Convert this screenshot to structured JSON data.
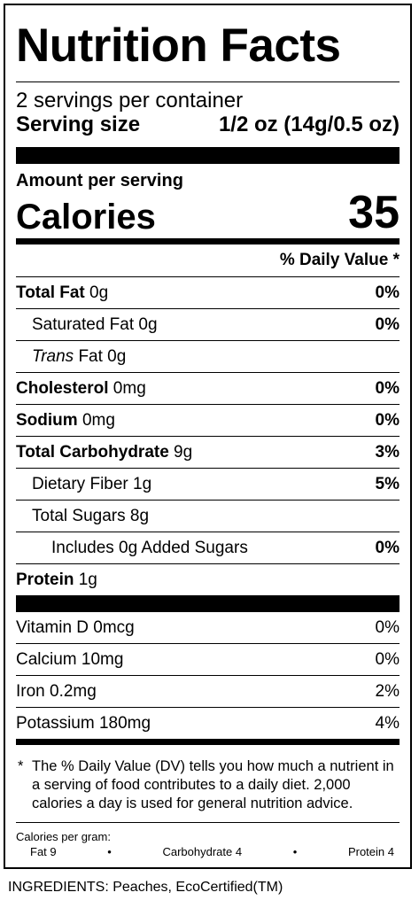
{
  "title": "Nutrition Facts",
  "servings_per_container": "2 servings per container",
  "serving_size": {
    "label": "Serving size",
    "value": "1/2 oz (14g/0.5 oz)"
  },
  "amount_per_serving": "Amount per serving",
  "calories": {
    "label": "Calories",
    "value": "35"
  },
  "dv_header": "% Daily Value *",
  "nutrients": [
    {
      "name": "Total Fat",
      "amount": " 0g",
      "dv": "0%"
    },
    {
      "name": "Saturated Fat 0g",
      "dv": "0%"
    },
    {
      "name_italic": "Trans",
      "name_rest": " Fat 0g",
      "dv": ""
    },
    {
      "name": "Cholesterol",
      "amount": " 0mg",
      "dv": "0%"
    },
    {
      "name": "Sodium",
      "amount": " 0mg",
      "dv": "0%"
    },
    {
      "name": "Total Carbohydrate",
      "amount": " 9g",
      "dv": "3%"
    },
    {
      "name": "Dietary Fiber 1g",
      "dv": "5%"
    },
    {
      "name": "Total Sugars 8g",
      "dv": ""
    },
    {
      "name": "Includes 0g Added Sugars",
      "dv": "0%"
    },
    {
      "name": "Protein",
      "amount": " 1g",
      "dv": ""
    }
  ],
  "vitamins": [
    {
      "name": "Vitamin D 0mcg",
      "dv": "0%"
    },
    {
      "name": "Calcium 10mg",
      "dv": "0%"
    },
    {
      "name": "Iron 0.2mg",
      "dv": "2%"
    },
    {
      "name": "Potassium 180mg",
      "dv": "4%"
    }
  ],
  "footnote": {
    "star": "*",
    "text": "The % Daily Value (DV) tells you how much a nutrient in a serving of food contributes to a daily diet. 2,000 calories a day is used for general nutrition advice."
  },
  "calories_per_gram": {
    "title": "Calories per gram:",
    "fat": "Fat 9",
    "carbohydrate": "Carbohydrate 4",
    "protein": "Protein 4",
    "bullet": "•"
  },
  "ingredients": "INGREDIENTS: Peaches, EcoCertified(TM)"
}
